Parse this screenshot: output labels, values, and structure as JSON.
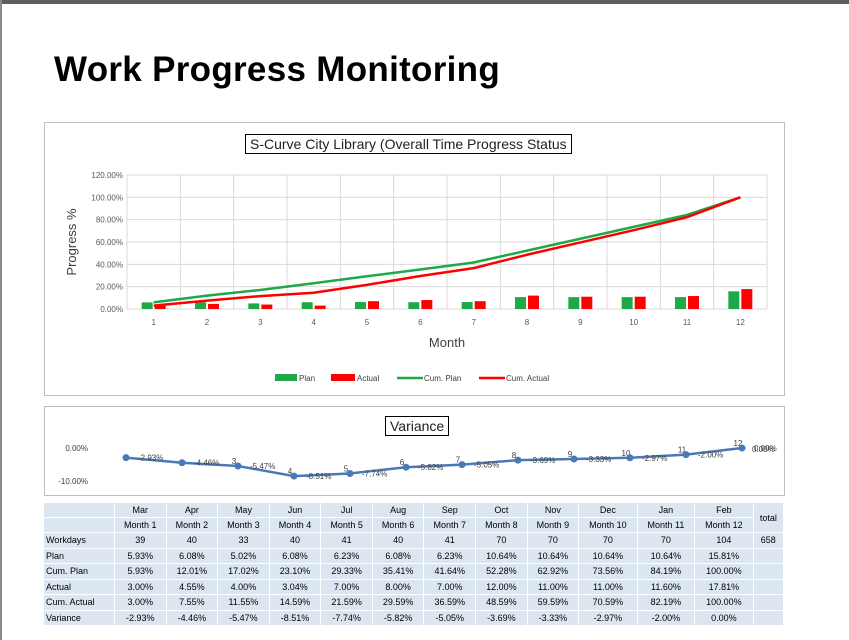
{
  "page_title": "Work Progress Monitoring",
  "colors": {
    "plan": "#1fa84a",
    "actual": "#ff0000",
    "variance": "#4a78b8",
    "grid": "#d9d9d9"
  },
  "chart_data": [
    {
      "type": "bar",
      "title": "S-Curve City Library (Overall Time Progress Status",
      "xlabel": "Month",
      "ylabel": "Progress %",
      "categories": [
        "1",
        "2",
        "3",
        "4",
        "5",
        "6",
        "7",
        "8",
        "9",
        "10",
        "11",
        "12"
      ],
      "y_ticks": [
        "0.00%",
        "20.00%",
        "40.00%",
        "60.00%",
        "80.00%",
        "100.00%",
        "120.00%"
      ],
      "ylim": [
        0,
        120
      ],
      "grid": true,
      "legend_position": "bottom",
      "series": [
        {
          "name": "Plan",
          "kind": "bar",
          "values": [
            5.93,
            6.08,
            5.02,
            6.08,
            6.23,
            6.08,
            6.23,
            10.64,
            10.64,
            10.64,
            10.64,
            15.81
          ]
        },
        {
          "name": "Actual",
          "kind": "bar",
          "values": [
            3.0,
            4.55,
            4.0,
            3.04,
            7.0,
            8.0,
            7.0,
            12.0,
            11.0,
            11.0,
            11.6,
            17.81
          ]
        },
        {
          "name": "Cum. Plan",
          "kind": "line",
          "values": [
            5.93,
            12.01,
            17.02,
            23.1,
            29.33,
            35.41,
            41.64,
            52.28,
            62.92,
            73.56,
            84.19,
            100.0
          ]
        },
        {
          "name": "Cum. Actual",
          "kind": "line",
          "values": [
            3.0,
            7.55,
            11.55,
            14.59,
            21.59,
            29.59,
            36.59,
            48.59,
            59.59,
            70.59,
            82.19,
            100.0
          ]
        }
      ]
    },
    {
      "type": "line",
      "title": "Variance",
      "categories": [
        "1",
        "2",
        "3",
        "4",
        "5",
        "6",
        "7",
        "8",
        "9",
        "10",
        "11",
        "12"
      ],
      "y_ticks_left": [
        "0.00%",
        "-10.00%"
      ],
      "y_tick_right": "0.00%",
      "ylim": [
        -10,
        0
      ],
      "values": [
        -2.93,
        -4.46,
        -5.47,
        -8.51,
        -7.74,
        -5.82,
        -5.05,
        -3.69,
        -3.33,
        -2.97,
        -2.0,
        0.0
      ],
      "data_labels": [
        "-2.93%",
        "-4.46%",
        "-5.47%",
        "-8.51%",
        "-7.74%",
        "-5.82%",
        "-5.05%",
        "-3.69%",
        "-3.33%",
        "-2.97%",
        "-2.00%",
        "0.00%"
      ]
    }
  ],
  "table": {
    "months": [
      "Mar",
      "Apr",
      "May",
      "Jun",
      "Jul",
      "Aug",
      "Sep",
      "Oct",
      "Nov",
      "Dec",
      "Jan",
      "Feb"
    ],
    "month_nums": [
      "Month 1",
      "Month 2",
      "Month 3",
      "Month 4",
      "Month 5",
      "Month 6",
      "Month 7",
      "Month 8",
      "Month 9",
      "Month 10",
      "Month 11",
      "Month 12"
    ],
    "total_label": "total",
    "rows": [
      {
        "label": "Workdays",
        "values": [
          "39",
          "40",
          "33",
          "40",
          "41",
          "40",
          "41",
          "70",
          "70",
          "70",
          "70",
          "104"
        ],
        "total": "658"
      },
      {
        "label": "Plan",
        "values": [
          "5.93%",
          "6.08%",
          "5.02%",
          "6.08%",
          "6.23%",
          "6.08%",
          "6.23%",
          "10.64%",
          "10.64%",
          "10.64%",
          "10.64%",
          "15.81%"
        ],
        "total": ""
      },
      {
        "label": "Cum. Plan",
        "values": [
          "5.93%",
          "12.01%",
          "17.02%",
          "23.10%",
          "29.33%",
          "35.41%",
          "41.64%",
          "52.28%",
          "62.92%",
          "73.56%",
          "84.19%",
          "100.00%"
        ],
        "total": ""
      },
      {
        "label": "Actual",
        "values": [
          "3.00%",
          "4.55%",
          "4.00%",
          "3.04%",
          "7.00%",
          "8.00%",
          "7.00%",
          "12.00%",
          "11.00%",
          "11.00%",
          "11.60%",
          "17.81%"
        ],
        "total": ""
      },
      {
        "label": "Cum. Actual",
        "values": [
          "3.00%",
          "7.55%",
          "11.55%",
          "14.59%",
          "21.59%",
          "29.59%",
          "36.59%",
          "48.59%",
          "59.59%",
          "70.59%",
          "82.19%",
          "100.00%"
        ],
        "total": ""
      },
      {
        "label": "Variance",
        "values": [
          "-2.93%",
          "-4.46%",
          "-5.47%",
          "-8.51%",
          "-7.74%",
          "-5.82%",
          "-5.05%",
          "-3.69%",
          "-3.33%",
          "-2.97%",
          "-2.00%",
          "0.00%"
        ],
        "total": ""
      }
    ]
  }
}
